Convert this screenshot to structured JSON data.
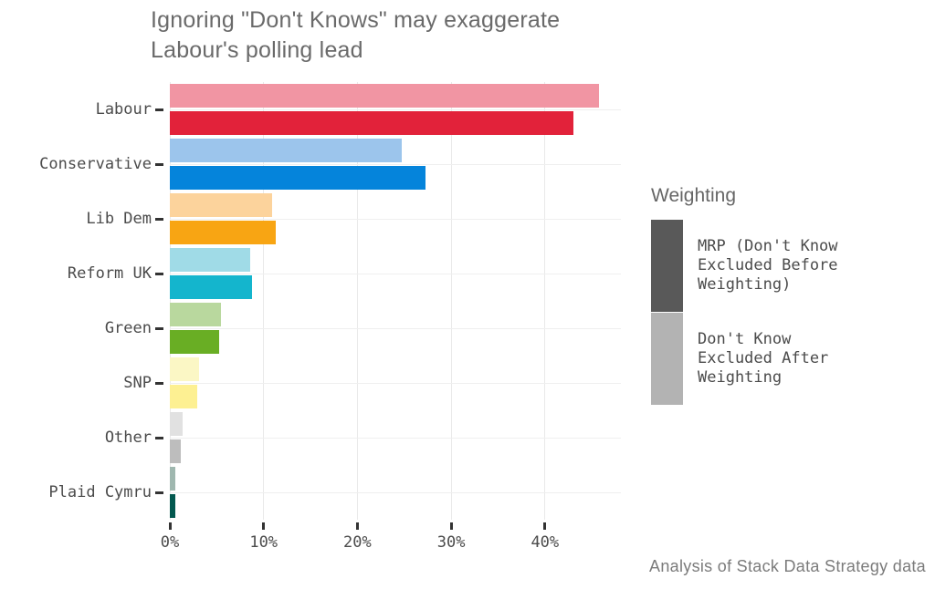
{
  "title": "Ignoring \"Don't Knows\" may exaggerate\nLabour's polling lead",
  "caption": "Analysis of Stack Data Strategy data",
  "legend": {
    "title": "Weighting",
    "items": [
      {
        "label": "MRP (Don't Know\nExcluded Before\nWeighting)",
        "color": "#595959"
      },
      {
        "label": "Don't Know\nExcluded After\nWeighting",
        "color": "#b3b3b3"
      }
    ]
  },
  "chart_data": {
    "type": "bar",
    "orientation": "horizontal",
    "title": "Ignoring \"Don't Knows\" may exaggerate Labour's polling lead",
    "xlabel": "",
    "ylabel": "",
    "categories": [
      "Labour",
      "Conservative",
      "Lib Dem",
      "Reform UK",
      "Green",
      "SNP",
      "Other",
      "Plaid Cymru"
    ],
    "series": [
      {
        "name": "Don't Know Excluded After Weighting",
        "position": "top",
        "values": [
          45.8,
          24.7,
          10.9,
          8.6,
          5.5,
          3.1,
          1.4,
          0.6
        ],
        "colors": [
          "#f195a3",
          "#9cc5ec",
          "#fcd39c",
          "#a0dbe7",
          "#b9d89e",
          "#fbf7c5",
          "#e1e1e1",
          "#9fb7af"
        ]
      },
      {
        "name": "MRP (Don't Know Excluded Before Weighting)",
        "position": "bottom",
        "values": [
          43.0,
          27.3,
          11.3,
          8.8,
          5.3,
          2.9,
          1.2,
          0.6
        ],
        "colors": [
          "#e2223a",
          "#0584db",
          "#f8a513",
          "#14b5cd",
          "#69ae24",
          "#fdf092",
          "#bdbdbd",
          "#03584f"
        ]
      }
    ],
    "x_ticks": [
      "0%",
      "10%",
      "20%",
      "30%",
      "40%"
    ],
    "x_tick_values": [
      0,
      10,
      20,
      30,
      40
    ],
    "xlim": [
      0,
      48.1
    ],
    "grid": "vertical lines at major x ticks, horizontal lines at category centers",
    "legend_position": "right",
    "unit": "percent"
  },
  "colors": {
    "title_text": "#6a6a6a",
    "axis_text": "#4b4b4b",
    "gridline": "#e9e9e9",
    "tick_mark": "#333333",
    "caption_text": "#7b7b7b"
  }
}
